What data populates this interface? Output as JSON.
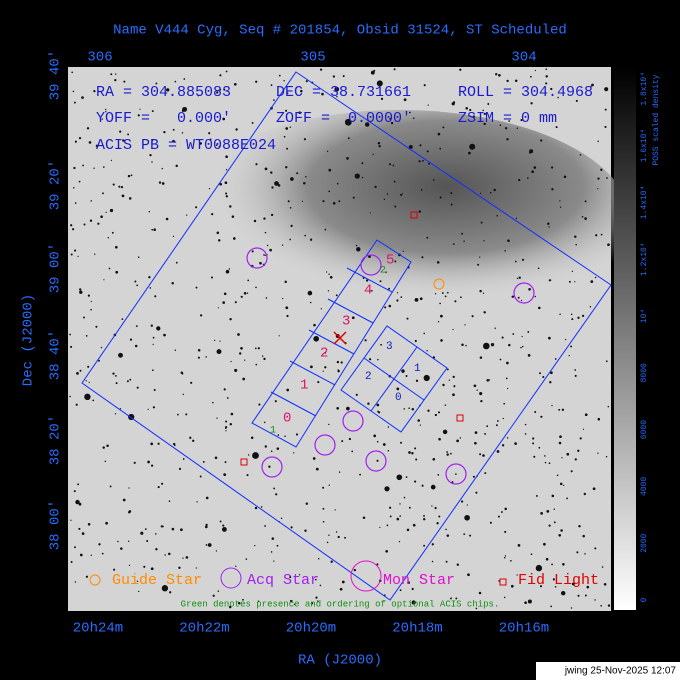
{
  "title": "Name V444 Cyg, Seq # 201854, Obsid 31524, ST Scheduled",
  "top_axis": [
    "306",
    "305",
    "304"
  ],
  "left_axis": [
    "39 40'",
    "39 20'",
    "39 00'",
    "38 40'",
    "38 20'",
    "38 00'"
  ],
  "left_axis_title": "Dec (J2000)",
  "bottom_axis": [
    "20h24m",
    "20h22m",
    "20h20m",
    "20h18m",
    "20h16m"
  ],
  "bottom_axis_title": "RA (J2000)",
  "info": [
    [
      "RA = 304.885083",
      "DEC = 38.731661",
      "ROLL = 304.4968"
    ],
    [
      "YOFF =   0.000'",
      "ZOFF =  0.0000'",
      "ZSIM = 0 mm"
    ],
    [
      "ACIS PB = WT0088E024"
    ]
  ],
  "chips_s": [
    "0",
    "1",
    "2",
    "3",
    "4",
    "5"
  ],
  "chips_optional": [
    "1",
    "2"
  ],
  "chips_i": [
    "3",
    "1",
    "2",
    "0"
  ],
  "legend": [
    "Guide Star",
    "Acq Star",
    "Mon Star",
    "Fid Light"
  ],
  "note": "Green denotes presence and ordering of optional ACIS chips.",
  "colorbar": {
    "title": "POSS scaled density",
    "labels": [
      "0",
      "2000",
      "4000",
      "6000",
      "8000",
      "10⁴",
      "1.2x10⁴",
      "1.4x10⁴",
      "1.6x10⁴",
      "1.8x10⁴"
    ]
  },
  "footer": "jwing 25-Nov-2025 12:07"
}
